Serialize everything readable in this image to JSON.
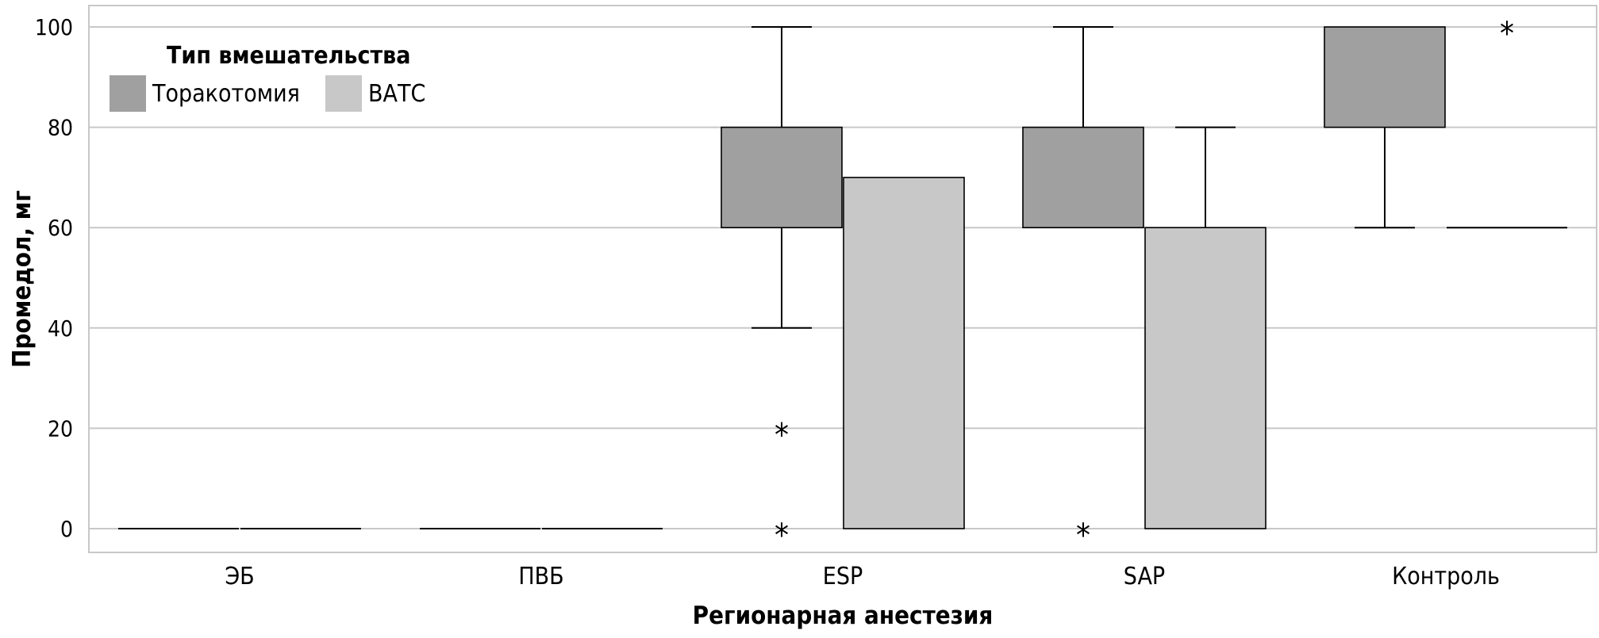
{
  "chart_data": {
    "type": "boxplot",
    "title": "",
    "xlabel": "Регионарная анестезия",
    "ylabel": "Промедол, мг",
    "ylim": [
      0,
      100
    ],
    "yticks": [
      0,
      20,
      40,
      60,
      80,
      100
    ],
    "grid": true,
    "legend": {
      "title": "Тип вмешательства",
      "position": "top-left"
    },
    "categories": [
      "ЭБ",
      "ПВБ",
      "ESP",
      "SAP",
      "Контроль"
    ],
    "series": [
      {
        "name": "Торакотомия",
        "color": "#a0a0a0",
        "boxes": [
          {
            "category": "ЭБ",
            "min": 0,
            "q1": 0,
            "median": 0,
            "q3": 0,
            "max": 0,
            "outliers": []
          },
          {
            "category": "ПВБ",
            "min": 0,
            "q1": 0,
            "median": 0,
            "q3": 0,
            "max": 0,
            "outliers": []
          },
          {
            "category": "ESP",
            "min": 40,
            "q1": 60,
            "median": 60,
            "q3": 80,
            "max": 100,
            "outliers": [
              20,
              0
            ]
          },
          {
            "category": "SAP",
            "min": 60,
            "q1": 60,
            "median": 60,
            "q3": 80,
            "max": 100,
            "outliers": [
              0
            ]
          },
          {
            "category": "Контроль",
            "min": 60,
            "q1": 80,
            "median": 100,
            "q3": 100,
            "max": 100,
            "outliers": []
          }
        ]
      },
      {
        "name": "ВАТС",
        "color": "#c8c8c8",
        "boxes": [
          {
            "category": "ЭБ",
            "min": 0,
            "q1": 0,
            "median": 0,
            "q3": 0,
            "max": 0,
            "outliers": []
          },
          {
            "category": "ПВБ",
            "min": 0,
            "q1": 0,
            "median": 0,
            "q3": 0,
            "max": 0,
            "outliers": []
          },
          {
            "category": "ESP",
            "min": 0,
            "q1": 0,
            "median": 0,
            "q3": 70,
            "max": 70,
            "outliers": []
          },
          {
            "category": "SAP",
            "min": 0,
            "q1": 0,
            "median": 60,
            "q3": 60,
            "max": 80,
            "outliers": []
          },
          {
            "category": "Контроль",
            "min": 60,
            "q1": 60,
            "median": 60,
            "q3": 60,
            "max": 60,
            "outliers": [
              100
            ]
          }
        ]
      }
    ]
  }
}
